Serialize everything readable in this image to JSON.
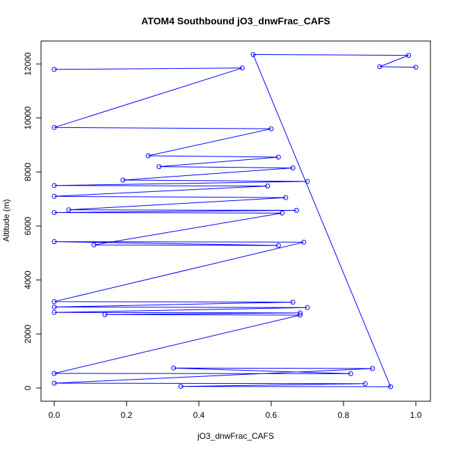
{
  "chart_data": {
    "type": "scatter",
    "title": "ATOM4 Southbound jO3_dnwFrac_CAFS",
    "xlabel": "jO3_dnwFrac_CAFS",
    "ylabel": "Altitude (m)",
    "xlim": [
      0.0,
      1.0
    ],
    "ylim": [
      0,
      12500
    ],
    "x_ticks": [
      0.0,
      0.2,
      0.4,
      0.6,
      0.8,
      1.0
    ],
    "x_tick_labels": [
      "0.0",
      "0.2",
      "0.4",
      "0.6",
      "0.8",
      "1.0"
    ],
    "y_ticks": [
      0,
      2000,
      4000,
      6000,
      8000,
      10000,
      12000
    ],
    "y_tick_labels": [
      "0",
      "2000",
      "4000",
      "6000",
      "8000",
      "10000",
      "12000"
    ],
    "grid": false,
    "legend": "none",
    "style": "points connected by lines (open circles)",
    "color": "#0000ff",
    "series": [
      {
        "x": [
          0.0,
          0.52,
          0.0,
          0.6,
          0.26,
          0.62,
          0.29,
          0.66,
          0.19,
          0.7,
          0.0,
          0.59,
          0.0,
          0.64,
          0.04,
          0.67,
          0.0,
          0.63,
          0.11,
          0.62,
          0.0,
          0.69,
          0.0,
          0.66,
          0.0,
          0.7,
          0.0,
          0.68,
          0.14,
          0.68,
          0.0,
          0.82,
          0.33,
          0.88,
          0.0,
          0.86,
          0.35,
          0.93,
          0.55,
          0.98,
          0.9,
          1.0
        ],
        "y": [
          11800,
          11850,
          9650,
          9600,
          8600,
          8550,
          8200,
          8150,
          7700,
          7650,
          7500,
          7480,
          7100,
          7050,
          6600,
          6580,
          6500,
          6480,
          5300,
          5280,
          5420,
          5400,
          3200,
          3180,
          3000,
          2980,
          2800,
          2780,
          2720,
          2700,
          540,
          530,
          740,
          720,
          180,
          160,
          60,
          50,
          12350,
          12320,
          11900,
          11880
        ]
      }
    ]
  }
}
